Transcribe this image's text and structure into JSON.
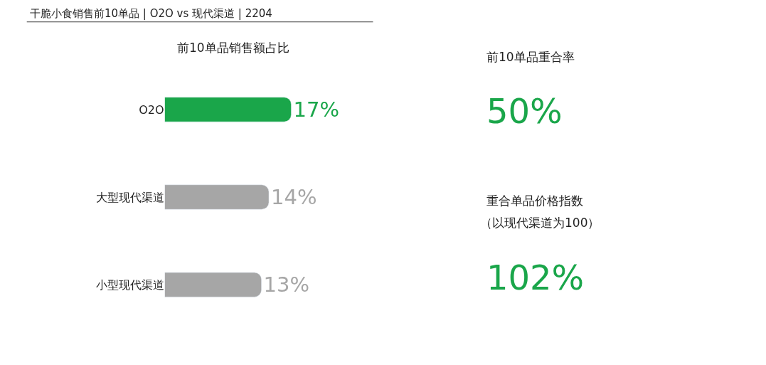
{
  "chart_data": [
    {
      "type": "bar",
      "title": "干脆小食销售前10单品 | O2O vs 现代渠道 | 2204",
      "subtitle": "前10单品销售额占比",
      "orientation": "horizontal",
      "categories": [
        "O2O",
        "大型现代渠道",
        "小型现代渠道"
      ],
      "values": [
        17,
        14,
        13
      ],
      "colors": [
        "#1aa64a",
        "#a6a6a6",
        "#a6a6a6"
      ],
      "value_labels": [
        "17%",
        "14%",
        "13%"
      ]
    },
    {
      "type": "other",
      "annotations": [
        "前10单品重合率",
        "50%"
      ]
    },
    {
      "type": "other",
      "annotations": [
        "重合单品价格指数",
        "（以现代渠道为100）",
        "102%"
      ]
    }
  ]
}
